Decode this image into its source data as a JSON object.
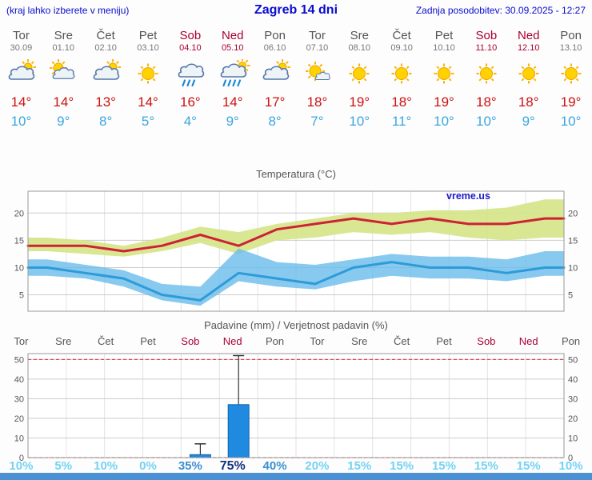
{
  "header": {
    "left_note": "(kraj lahko izberete v meniju)",
    "title": "Zagreb 14 dni",
    "updated": "Zadnja posodobitev: 30.09.2025 - 12:27"
  },
  "palette": {
    "header_blue": "#0b0bcf",
    "day_gray": "#555555",
    "date_gray": "#777777",
    "weekend_red": "#aa0033",
    "temp_high_red": "#cc1111",
    "temp_low_blue": "#3aa6e0",
    "bar_blue": "#1f8ae0",
    "prob_light": "#74d2f2",
    "prob_medium": "#3b8fd0",
    "prob_dark": "#14307e",
    "footer_blue": "#4a90d2",
    "grid_minor": "#e2e2e2",
    "grid_major": "#cccccc",
    "plot_border": "#999999",
    "limit_red": "#e04848",
    "title_gray": "#555555",
    "watermark_blue": "#1b1bd0"
  },
  "days": [
    {
      "name": "Tor",
      "date": "30.09",
      "icon": "mostly-cloudy",
      "high": "14°",
      "low": "10°",
      "weekend": false
    },
    {
      "name": "Sre",
      "date": "01.10",
      "icon": "partly-cloudy",
      "high": "14°",
      "low": "9°",
      "weekend": false
    },
    {
      "name": "Čet",
      "date": "02.10",
      "icon": "mostly-cloudy",
      "high": "13°",
      "low": "8°",
      "weekend": false
    },
    {
      "name": "Pet",
      "date": "03.10",
      "icon": "sunny",
      "high": "14°",
      "low": "5°",
      "weekend": false
    },
    {
      "name": "Sob",
      "date": "04.10",
      "icon": "rain",
      "high": "16°",
      "low": "4°",
      "weekend": true
    },
    {
      "name": "Ned",
      "date": "05.10",
      "icon": "heavy-rain",
      "high": "14°",
      "low": "9°",
      "weekend": true
    },
    {
      "name": "Pon",
      "date": "06.10",
      "icon": "mostly-cloudy",
      "high": "17°",
      "low": "8°",
      "weekend": false
    },
    {
      "name": "Tor",
      "date": "07.10",
      "icon": "mostly-sunny",
      "high": "18°",
      "low": "7°",
      "weekend": false
    },
    {
      "name": "Sre",
      "date": "08.10",
      "icon": "sunny",
      "high": "19°",
      "low": "10°",
      "weekend": false
    },
    {
      "name": "Čet",
      "date": "09.10",
      "icon": "sunny",
      "high": "18°",
      "low": "11°",
      "weekend": false
    },
    {
      "name": "Pet",
      "date": "10.10",
      "icon": "sunny",
      "high": "19°",
      "low": "10°",
      "weekend": false
    },
    {
      "name": "Sob",
      "date": "11.10",
      "icon": "sunny",
      "high": "18°",
      "low": "10°",
      "weekend": true
    },
    {
      "name": "Ned",
      "date": "12.10",
      "icon": "sunny",
      "high": "18°",
      "low": "9°",
      "weekend": true
    },
    {
      "name": "Pon",
      "date": "13.10",
      "icon": "sunny",
      "high": "19°",
      "low": "10°",
      "weekend": false
    }
  ],
  "chart_data": [
    {
      "type": "line",
      "title": "Temperatura (°C)",
      "watermark": "vreme.us",
      "x_labels": [
        "Tor",
        "Sre",
        "Čet",
        "Pet",
        "Sob",
        "Ned",
        "Pon",
        "Tor",
        "Sre",
        "Čet",
        "Pet",
        "Sob",
        "Ned",
        "Pon"
      ],
      "ylim": [
        2,
        24
      ],
      "yticks": [
        5,
        10,
        15,
        20
      ],
      "series": [
        {
          "name": "max-temp",
          "color": "#cc2233",
          "values": [
            14,
            14,
            13,
            14,
            16,
            14,
            17,
            18,
            19,
            18,
            19,
            18,
            18,
            19
          ],
          "band_upper": [
            15.5,
            15,
            14,
            15.5,
            17.5,
            16.5,
            18,
            19,
            20,
            20,
            20.5,
            20.5,
            21,
            22.5
          ],
          "band_lower": [
            13,
            12.5,
            12,
            13,
            14.5,
            12.5,
            15,
            15.5,
            16.5,
            16,
            16.5,
            15.5,
            15,
            15.5
          ],
          "band_color": "rgba(213,228,135,0.9)"
        },
        {
          "name": "min-temp",
          "color": "#2d9bd8",
          "values": [
            10,
            9,
            8,
            5,
            4,
            9,
            8,
            7,
            10,
            11,
            10,
            10,
            9,
            10
          ],
          "band_upper": [
            11.5,
            10.5,
            9.5,
            7,
            6.5,
            13.5,
            11,
            10.5,
            11.5,
            12.5,
            12,
            12,
            11.5,
            13
          ],
          "band_lower": [
            8.5,
            8,
            6.5,
            4,
            3,
            7.5,
            6.5,
            6,
            7.5,
            8.5,
            8,
            8,
            7.5,
            8.5
          ],
          "band_color": "rgba(105,188,235,0.8)"
        }
      ]
    },
    {
      "type": "bar",
      "title": "Padavine (mm) / Verjetnost padavin (%)",
      "categories": [
        "Tor",
        "Sre",
        "Čet",
        "Pet",
        "Sob",
        "Ned",
        "Pon",
        "Tor",
        "Sre",
        "Čet",
        "Pet",
        "Sob",
        "Ned",
        "Pon"
      ],
      "values_mm": [
        0,
        0,
        0,
        0,
        1.5,
        27,
        0,
        0,
        0,
        0,
        0,
        0,
        0,
        0
      ],
      "whisker_mm": [
        0,
        0,
        0,
        0,
        7,
        52,
        0,
        0,
        0,
        0,
        0,
        0,
        0,
        0
      ],
      "probabilities": [
        {
          "label": "10%",
          "level": "light"
        },
        {
          "label": "5%",
          "level": "light"
        },
        {
          "label": "10%",
          "level": "light"
        },
        {
          "label": "0%",
          "level": "light"
        },
        {
          "label": "35%",
          "level": "medium"
        },
        {
          "label": "75%",
          "level": "dark"
        },
        {
          "label": "40%",
          "level": "medium"
        },
        {
          "label": "20%",
          "level": "light"
        },
        {
          "label": "15%",
          "level": "light"
        },
        {
          "label": "15%",
          "level": "light"
        },
        {
          "label": "15%",
          "level": "light"
        },
        {
          "label": "15%",
          "level": "light"
        },
        {
          "label": "15%",
          "level": "light"
        },
        {
          "label": "10%",
          "level": "light"
        }
      ],
      "ylim": [
        0,
        53
      ],
      "yticks": [
        0,
        10,
        20,
        30,
        40,
        50
      ],
      "limit_lines": [
        0,
        50
      ]
    }
  ]
}
